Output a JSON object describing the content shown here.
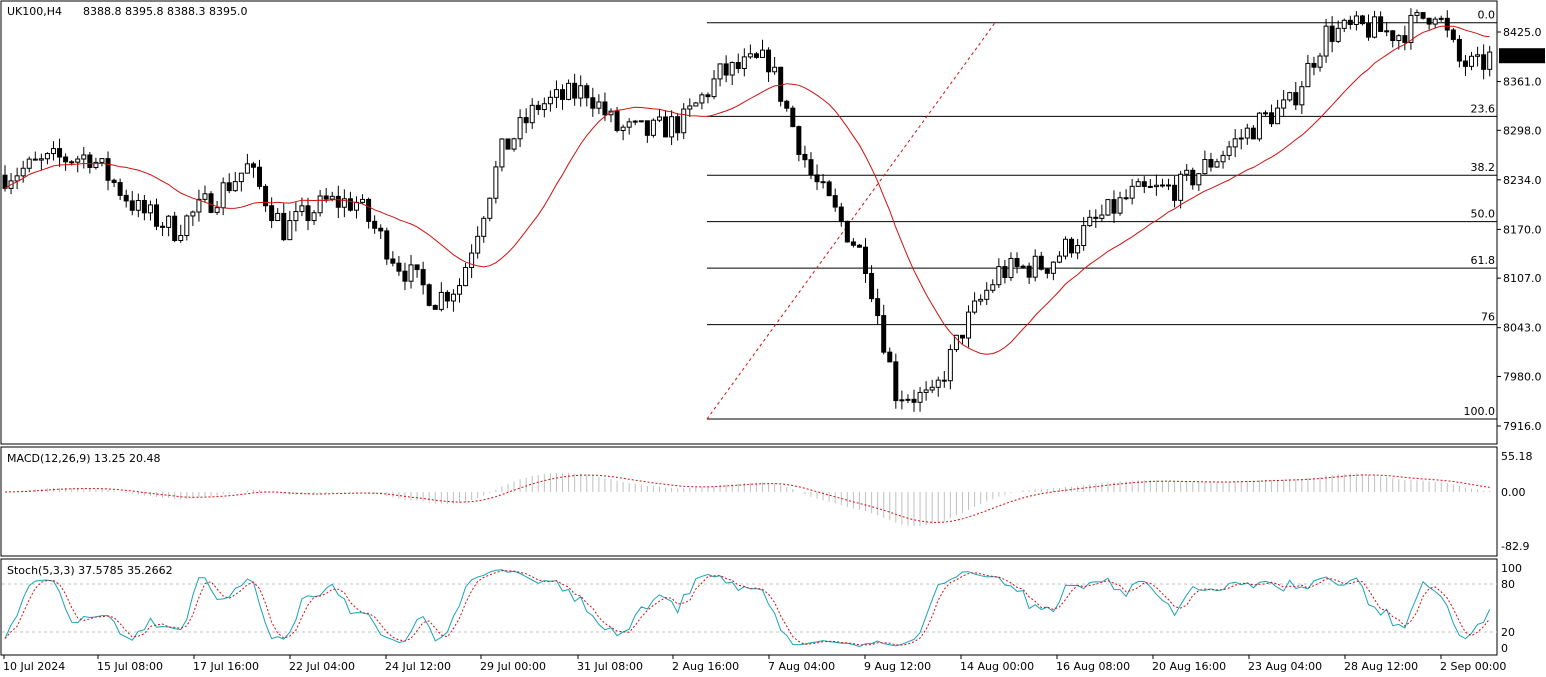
{
  "colors": {
    "background": "#ffffff",
    "candle_up_body": "#ffffff",
    "candle_down_body": "#000000",
    "candle_outline": "#000000",
    "ma_line": "#d01010",
    "fib_line": "#000000",
    "fib_trend": "#d01010",
    "macd_hist": "#c0c0c0",
    "macd_signal": "#d01010",
    "stoch_main": "#1aa3b8",
    "stoch_signal": "#d01010",
    "grid_dotted": "#c0c0c0",
    "current_price_bg": "#000000",
    "current_price_text": "#ffffff"
  },
  "header": {
    "symbol_tf": "UK100,H4",
    "ohlc": "8388.8 8395.8 8388.3 8395.0"
  },
  "macd_header": "MACD(12,26,9) 13.25 20.48",
  "stoch_header": "Stoch(5,3,3) 37.5785 35.2662",
  "current_price_label": "8395.0",
  "chart_data": [
    {
      "type": "candlestick",
      "title": "UK100,H4",
      "y_ticks": [
        "8425.0",
        "8361.0",
        "8298.0",
        "8234.0",
        "8170.0",
        "8107.0",
        "8043.0",
        "7980.0",
        "7916.0"
      ],
      "ylim": [
        7907,
        8445
      ],
      "current_price": 8395.0,
      "moving_average": "red line",
      "fibonacci_levels": [
        {
          "label": "0.0",
          "price": 8437
        },
        {
          "label": "23.6",
          "price": 8316
        },
        {
          "label": "38.2",
          "price": 8240
        },
        {
          "label": "50.0",
          "price": 8180
        },
        {
          "label": "61.8",
          "price": 8120
        },
        {
          "label": "76",
          "price": 8047
        },
        {
          "label": "100.0",
          "price": 7925
        }
      ]
    },
    {
      "type": "bar",
      "title": "MACD(12,26,9) 13.25 20.48",
      "y_ticks": [
        "55.18",
        "0.00",
        "-82.9"
      ],
      "ylim": [
        -82.9,
        55.18
      ]
    },
    {
      "type": "line",
      "title": "Stoch(5,3,3) 37.5785 35.2662",
      "y_ticks": [
        "100",
        "80",
        "20",
        "0"
      ],
      "ylim": [
        0,
        100
      ],
      "levels": [
        80,
        20
      ]
    }
  ],
  "x_axis": {
    "labels": [
      "10 Jul 2024",
      "15 Jul 08:00",
      "17 Jul 16:00",
      "22 Jul 04:00",
      "24 Jul 12:00",
      "29 Jul 00:00",
      "31 Jul 08:00",
      "2 Aug 16:00",
      "7 Aug 04:00",
      "9 Aug 12:00",
      "14 Aug 00:00",
      "16 Aug 08:00",
      "20 Aug 16:00",
      "23 Aug 04:00",
      "28 Aug 12:00",
      "2 Sep 00:00"
    ]
  }
}
